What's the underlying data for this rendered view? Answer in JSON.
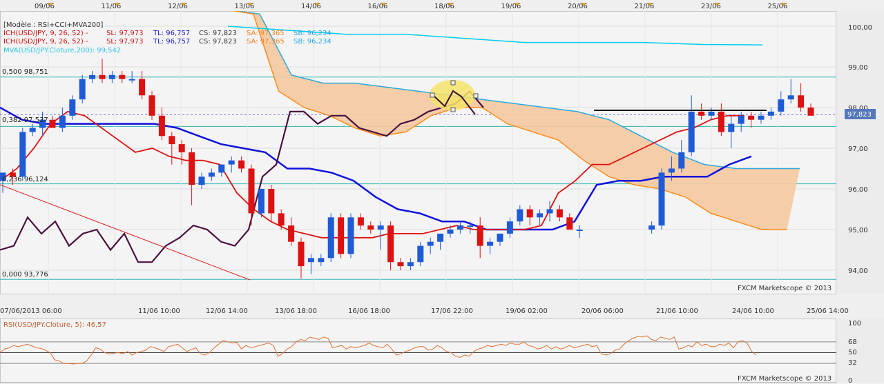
{
  "top_dates": [
    "09/06",
    "11/06",
    "12/06",
    "13/06",
    "14/06",
    "16/06",
    "18/06",
    "19/06",
    "20/06",
    "21/06",
    "23/06",
    "25/06"
  ],
  "bottom_dates": [
    "07/06/2013 06:00",
    "11/06 10:00",
    "12/06 14:00",
    "13/06 18:00",
    "16/06 18:00",
    "17/06 22:00",
    "19/06 02:00",
    "20/06 06:00",
    "21/06 10:00",
    "24/06 10:00",
    "25/06 14:00"
  ],
  "legend": {
    "model": "[Modèle : RSI+CCI+MVA200]",
    "ich1": {
      "name": "ICH(USD/JPY, 9, 26, 52) -",
      "sl": "SL: 97,973",
      "tl": "TL: 96,757",
      "cs": "CS: 97,823",
      "sa": "SA: 97,365",
      "sb": "SB: 96,234"
    },
    "ich2": {
      "name": "ICH(USD/JPY, 9, 26, 52) -",
      "sl": "SL: 97,973",
      "tl": "TL: 96,757",
      "cs": "CS: 97,823",
      "sa": "SA: 97,365",
      "sb": "SB: 96,234"
    },
    "mva": "MVA(USD/JPY.Cloture,200): 99,542"
  },
  "fib": [
    "0,500 98,751",
    "0,382 97,537",
    "0,236 96,124",
    "0,000 93,776"
  ],
  "price_axis": [
    "100,00",
    "99,00",
    "98,00",
    "97,00",
    "96,00",
    "95,00",
    "94,00"
  ],
  "current_price": "97,823",
  "watermark": "FXCM Marketscope © 2013",
  "rsi": {
    "label": "RSI(USD/JPY.Cloture, 5): 46,57",
    "axis": [
      "100",
      "68",
      "50",
      "32",
      "0"
    ]
  },
  "colors": {
    "bull": "#1f5bd6",
    "bear": "#dd1111",
    "cloud": "#f5c9a0",
    "tenkan": "#e01010",
    "kijun": "#1010dd",
    "chikou": "#4a1040",
    "mva": "#00ccee",
    "senkou_b": "#ff8c1a",
    "senkou_a": "#29a9e0"
  },
  "chart_data": {
    "type": "candlestick",
    "pair": "USD/JPY",
    "ylim": [
      93.55,
      100.45
    ],
    "fib_levels": [
      98.751,
      97.537,
      96.124,
      93.776
    ],
    "last_close": 97.823,
    "candles": [
      [
        96.2,
        96.4,
        95.9,
        96.4
      ],
      [
        96.4,
        96.5,
        96.1,
        96.3
      ],
      [
        96.3,
        97.5,
        96.2,
        97.4
      ],
      [
        97.4,
        97.6,
        97.3,
        97.5
      ],
      [
        97.5,
        97.9,
        97.3,
        97.7
      ],
      [
        97.7,
        97.8,
        97.5,
        97.5
      ],
      [
        97.5,
        98.0,
        97.4,
        97.8
      ],
      [
        97.8,
        98.3,
        97.7,
        98.2
      ],
      [
        98.2,
        98.8,
        98.1,
        98.7
      ],
      [
        98.7,
        98.9,
        98.6,
        98.8
      ],
      [
        98.8,
        99.2,
        98.6,
        98.7
      ],
      [
        98.7,
        98.9,
        98.6,
        98.8
      ],
      [
        98.8,
        98.9,
        98.6,
        98.7
      ],
      [
        98.7,
        98.9,
        98.6,
        98.7
      ],
      [
        98.7,
        98.9,
        98.2,
        98.3
      ],
      [
        98.3,
        98.4,
        97.7,
        97.8
      ],
      [
        97.8,
        98.0,
        97.2,
        97.3
      ],
      [
        97.3,
        97.4,
        96.6,
        97.1
      ],
      [
        97.1,
        97.2,
        96.6,
        96.9
      ],
      [
        96.9,
        97.0,
        95.6,
        96.1
      ],
      [
        96.1,
        96.4,
        96.0,
        96.3
      ],
      [
        96.3,
        96.5,
        96.2,
        96.4
      ],
      [
        96.4,
        96.6,
        96.3,
        96.6
      ],
      [
        96.6,
        96.8,
        96.4,
        96.7
      ],
      [
        96.7,
        96.8,
        96.4,
        96.5
      ],
      [
        96.5,
        96.6,
        95.1,
        95.4
      ],
      [
        95.4,
        96.0,
        95.3,
        96.0
      ],
      [
        96.0,
        96.1,
        95.2,
        95.4
      ],
      [
        95.4,
        95.5,
        95.0,
        95.1
      ],
      [
        95.1,
        95.3,
        94.6,
        94.7
      ],
      [
        94.7,
        94.8,
        93.8,
        94.1
      ],
      [
        94.2,
        94.4,
        93.9,
        94.3
      ],
      [
        94.2,
        94.4,
        94.1,
        94.3
      ],
      [
        94.3,
        95.4,
        94.2,
        95.3
      ],
      [
        95.3,
        95.4,
        94.3,
        94.4
      ],
      [
        94.4,
        95.4,
        94.3,
        95.3
      ],
      [
        95.3,
        95.4,
        95.0,
        95.1
      ],
      [
        95.1,
        95.2,
        94.9,
        95.0
      ],
      [
        95.0,
        95.2,
        94.5,
        95.1
      ],
      [
        95.1,
        95.2,
        94.0,
        94.2
      ],
      [
        94.2,
        94.3,
        94.0,
        94.1
      ],
      [
        94.1,
        94.3,
        94.0,
        94.2
      ],
      [
        94.2,
        94.7,
        94.1,
        94.6
      ],
      [
        94.6,
        94.8,
        94.4,
        94.7
      ],
      [
        94.7,
        94.9,
        94.5,
        94.9
      ],
      [
        94.9,
        95.1,
        94.8,
        95.0
      ],
      [
        95.0,
        95.2,
        94.9,
        95.1
      ],
      [
        95.1,
        95.2,
        94.9,
        95.1
      ],
      [
        95.1,
        95.3,
        94.3,
        94.6
      ],
      [
        94.6,
        94.8,
        94.4,
        94.7
      ],
      [
        94.7,
        94.9,
        94.6,
        94.9
      ],
      [
        94.9,
        95.3,
        94.8,
        95.2
      ],
      [
        95.2,
        95.6,
        95.1,
        95.5
      ],
      [
        95.5,
        95.6,
        95.1,
        95.3
      ],
      [
        95.3,
        95.5,
        95.1,
        95.4
      ],
      [
        95.4,
        95.7,
        95.2,
        95.5
      ],
      [
        95.5,
        95.6,
        95.2,
        95.3
      ],
      [
        95.3,
        95.4,
        95.0,
        95.0
      ],
      [
        95.0,
        95.1,
        94.8,
        95.0
      ],
      [
        95.0,
        95.2,
        94.9,
        95.1
      ],
      [
        95.1,
        96.5,
        95.0,
        96.4
      ],
      [
        96.4,
        96.8,
        96.2,
        96.5
      ],
      [
        96.5,
        97.2,
        96.4,
        96.9
      ],
      [
        96.9,
        98.3,
        96.8,
        97.9
      ],
      [
        97.9,
        98.1,
        97.7,
        97.8
      ],
      [
        97.8,
        98.0,
        97.7,
        97.9
      ],
      [
        97.9,
        98.1,
        97.3,
        97.4
      ],
      [
        97.4,
        97.8,
        97.0,
        97.6
      ],
      [
        97.6,
        97.9,
        97.4,
        97.8
      ],
      [
        97.8,
        97.9,
        97.5,
        97.7
      ],
      [
        97.7,
        97.9,
        97.6,
        97.8
      ],
      [
        97.8,
        98.0,
        97.7,
        97.9
      ],
      [
        97.9,
        98.4,
        97.8,
        98.2
      ],
      [
        98.2,
        98.7,
        98.1,
        98.3
      ],
      [
        98.3,
        98.6,
        97.9,
        98.0
      ],
      [
        98.0,
        98.1,
        97.8,
        97.8
      ]
    ],
    "tenkan_sen": [
      96.2,
      96.5,
      97.0,
      97.6,
      97.9,
      97.8,
      97.5,
      97.2,
      96.9,
      97.0,
      96.8,
      96.7,
      96.7,
      96.6,
      95.9,
      95.5,
      95.2,
      95.0,
      94.9,
      94.8,
      94.8,
      94.8,
      94.8,
      94.9,
      94.9,
      94.9,
      95.0,
      95.1,
      95.0,
      95.0,
      95.0,
      95.0,
      95.1,
      95.9,
      96.2,
      96.6,
      96.6,
      96.8,
      97.0,
      97.2,
      97.4,
      97.5,
      97.7,
      97.8,
      97.8
    ],
    "kijun_sen": [
      98.0,
      97.7,
      97.6,
      97.6,
      97.6,
      97.6,
      97.6,
      97.6,
      97.5,
      97.3,
      97.1,
      97.0,
      96.9,
      96.5,
      96.5,
      96.4,
      96.2,
      95.8,
      95.5,
      95.4,
      95.2,
      95.2,
      95.0,
      95.0,
      95.0,
      95.0,
      95.2,
      96.1,
      96.2,
      96.2,
      96.3,
      96.3,
      96.3,
      96.6,
      96.8
    ],
    "chikou_span": [
      94.5,
      94.6,
      95.3,
      94.9,
      95.2,
      94.6,
      94.9,
      95.0,
      94.5,
      94.9,
      94.2,
      94.2,
      94.6,
      94.8,
      95.1,
      95.0,
      94.7,
      94.6,
      95.0,
      96.3,
      96.6,
      97.9,
      97.9,
      97.6,
      97.8,
      97.8,
      97.5,
      97.4,
      97.3,
      97.6,
      97.7,
      97.9,
      98.0,
      98.1,
      98.4,
      98.0
    ],
    "senkou_a": [
      100.4,
      100.3,
      98.8,
      98.6,
      98.6,
      98.5,
      98.4,
      98.3,
      98.2,
      98.1,
      98.0,
      97.9,
      97.7,
      97.3,
      96.9,
      96.6,
      96.5,
      96.5,
      96.5
    ],
    "senkou_b": [
      100.4,
      100.3,
      98.4,
      98.0,
      97.8,
      97.5,
      97.3,
      97.4,
      97.8,
      98.0,
      98.0,
      97.6,
      97.4,
      97.2,
      96.7,
      96.3,
      96.1,
      96.0,
      95.8,
      95.4,
      95.2,
      95.0,
      95.0
    ],
    "mva200": [
      100.0,
      99.9,
      99.8,
      99.8,
      99.7,
      99.6,
      99.6,
      99.6,
      99.55,
      99.54
    ],
    "rsi5": [
      50,
      56,
      58,
      62,
      60,
      62,
      64,
      61,
      58,
      57,
      54,
      50,
      38,
      36,
      32,
      32,
      31,
      32,
      32,
      36,
      46,
      58,
      56,
      50,
      48,
      49,
      50,
      48,
      52,
      46,
      50,
      52,
      54,
      60,
      58,
      55,
      52,
      60,
      62,
      64,
      58,
      52,
      55,
      58,
      48,
      46,
      50,
      58,
      64,
      70,
      68,
      66,
      67,
      56,
      62,
      58,
      60,
      62,
      64,
      66,
      62,
      44,
      48,
      56,
      60,
      68,
      72,
      70,
      76,
      74,
      72,
      76,
      74,
      58,
      60,
      62,
      56,
      60,
      58,
      60,
      62,
      66,
      62,
      60,
      58,
      64,
      56,
      46,
      48,
      52,
      54,
      58,
      60,
      60,
      54,
      56,
      62,
      58,
      52,
      50,
      44,
      42,
      46,
      44,
      52,
      56,
      58,
      62,
      60,
      62,
      64,
      62,
      66,
      64,
      64,
      68,
      62,
      60,
      56,
      58,
      62,
      56,
      60,
      56,
      58,
      62,
      58,
      60,
      62,
      64,
      60,
      62,
      48,
      46,
      48,
      54,
      56,
      64,
      70,
      74,
      77,
      76,
      78,
      72,
      70,
      76,
      74,
      72,
      76,
      56,
      58,
      62,
      60,
      68,
      62,
      64,
      60,
      60,
      64,
      62,
      66,
      58,
      68,
      70,
      66,
      52,
      46
    ]
  }
}
